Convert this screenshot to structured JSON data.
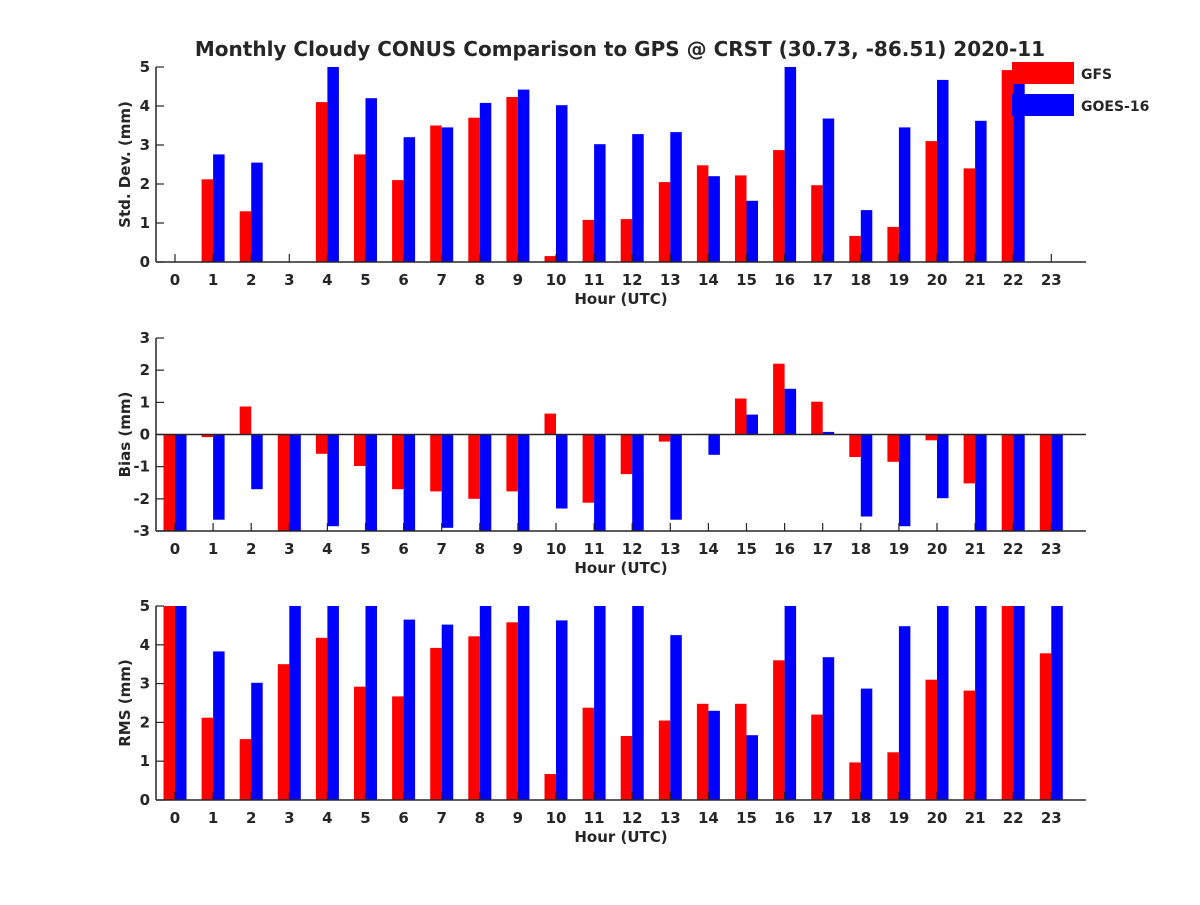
{
  "title": "Monthly Cloudy CONUS Comparison to GPS @ CRST (30.73, -86.51) 2020-11",
  "legend": {
    "placement": "top-right",
    "items": [
      {
        "name": "GFS",
        "color": "#ff0000"
      },
      {
        "name": "GOES-16",
        "color": "#0000ff"
      }
    ]
  },
  "chart_data": [
    {
      "type": "bar",
      "xlabel": "Hour (UTC)",
      "ylabel": "Std. Dev. (mm)",
      "ylim": [
        0,
        5
      ],
      "yticks": [
        0,
        1,
        2,
        3,
        4,
        5
      ],
      "categories": [
        "0",
        "1",
        "2",
        "3",
        "4",
        "5",
        "6",
        "7",
        "8",
        "9",
        "10",
        "11",
        "12",
        "13",
        "14",
        "15",
        "16",
        "17",
        "18",
        "19",
        "20",
        "21",
        "22",
        "23"
      ],
      "series": [
        {
          "name": "GFS",
          "values": [
            0,
            2.12,
            1.3,
            0,
            4.1,
            2.76,
            2.1,
            3.5,
            3.7,
            4.23,
            0.15,
            1.08,
            1.1,
            2.05,
            2.48,
            2.22,
            2.87,
            1.97,
            0.67,
            0.9,
            3.1,
            2.4,
            4.92,
            0
          ]
        },
        {
          "name": "GOES-16",
          "values": [
            0,
            2.76,
            2.55,
            0,
            5,
            4.2,
            3.2,
            3.45,
            4.08,
            4.42,
            4.02,
            3.02,
            3.28,
            3.33,
            2.2,
            1.57,
            5,
            3.68,
            1.33,
            3.45,
            4.67,
            3.62,
            4.95,
            0
          ]
        }
      ]
    },
    {
      "type": "bar",
      "xlabel": "Hour (UTC)",
      "ylabel": "Bias (mm)",
      "ylim": [
        -3,
        3
      ],
      "yticks": [
        -3,
        -2,
        -1,
        0,
        1,
        2,
        3
      ],
      "categories": [
        "0",
        "1",
        "2",
        "3",
        "4",
        "5",
        "6",
        "7",
        "8",
        "9",
        "10",
        "11",
        "12",
        "13",
        "14",
        "15",
        "16",
        "17",
        "18",
        "19",
        "20",
        "21",
        "22",
        "23"
      ],
      "series": [
        {
          "name": "GFS",
          "values": [
            -3,
            -0.08,
            0.87,
            -3,
            -0.6,
            -0.98,
            -1.7,
            -1.77,
            -2.0,
            -1.77,
            0.65,
            -2.12,
            -1.23,
            -0.22,
            0.02,
            1.12,
            2.2,
            1.02,
            -0.7,
            -0.85,
            -0.18,
            -1.52,
            -3,
            -3
          ]
        },
        {
          "name": "GOES-16",
          "values": [
            -3,
            -2.65,
            -1.7,
            -3,
            -2.85,
            -3,
            -3,
            -2.9,
            -3,
            -3,
            -2.3,
            -3,
            -3,
            -2.65,
            -0.63,
            0.62,
            1.42,
            0.08,
            -2.55,
            -2.85,
            -1.98,
            -3,
            -3,
            -3
          ]
        }
      ]
    },
    {
      "type": "bar",
      "xlabel": "Hour (UTC)",
      "ylabel": "RMS (mm)",
      "ylim": [
        0,
        5
      ],
      "yticks": [
        0,
        1,
        2,
        3,
        4,
        5
      ],
      "categories": [
        "0",
        "1",
        "2",
        "3",
        "4",
        "5",
        "6",
        "7",
        "8",
        "9",
        "10",
        "11",
        "12",
        "13",
        "14",
        "15",
        "16",
        "17",
        "18",
        "19",
        "20",
        "21",
        "22",
        "23"
      ],
      "series": [
        {
          "name": "GFS",
          "values": [
            5,
            2.12,
            1.57,
            3.5,
            4.18,
            2.92,
            2.67,
            3.92,
            4.22,
            4.58,
            0.67,
            2.38,
            1.65,
            2.05,
            2.48,
            2.48,
            3.6,
            2.2,
            0.97,
            1.23,
            3.1,
            2.82,
            5,
            3.78
          ]
        },
        {
          "name": "GOES-16",
          "values": [
            5,
            3.83,
            3.02,
            5,
            5,
            5,
            4.65,
            4.52,
            5,
            5,
            4.63,
            5,
            5,
            4.25,
            2.3,
            1.67,
            5,
            3.68,
            2.87,
            4.48,
            5,
            5,
            5,
            5
          ]
        }
      ]
    }
  ]
}
